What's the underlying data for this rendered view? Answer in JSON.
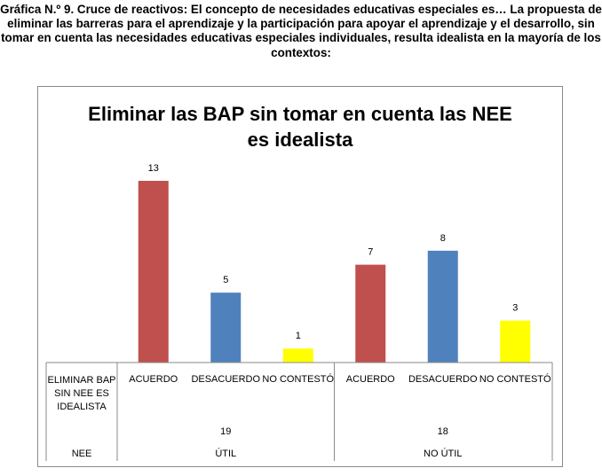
{
  "caption": "Gráfica N.º 9. Cruce de reactivos: El concepto de necesidades educativas especiales es… La propuesta de eliminar las barreras para el aprendizaje y la participación para apoyar el aprendizaje y el desarrollo, sin tomar en cuenta las necesidades educativas especiales individuales, resulta idealista en la mayoría de los contextos:",
  "chart_data": {
    "type": "bar",
    "title_lines": [
      "Eliminar las BAP sin tomar en cuenta las NEE",
      "es idealista"
    ],
    "series_label_lines": [
      "ELIMINAR BAP",
      "SIN NEE ES",
      "IDEALISTA"
    ],
    "outer_axis_label": "NEE",
    "groups": [
      {
        "name": "ÚTIL",
        "total": 19
      },
      {
        "name": "NO ÚTIL",
        "total": 18
      }
    ],
    "categories": [
      "ACUERDO",
      "DESACUERDO",
      "NO CONTESTÓ",
      "ACUERDO",
      "DESACUERDO",
      "NO CONTESTÓ"
    ],
    "values": [
      13,
      5,
      1,
      7,
      8,
      3
    ],
    "bar_colors": [
      "#c0504d",
      "#4f81bd",
      "#ffff00",
      "#c0504d",
      "#4f81bd",
      "#ffff00"
    ],
    "ylim": [
      0,
      13
    ],
    "grid": false,
    "legend": "none"
  }
}
